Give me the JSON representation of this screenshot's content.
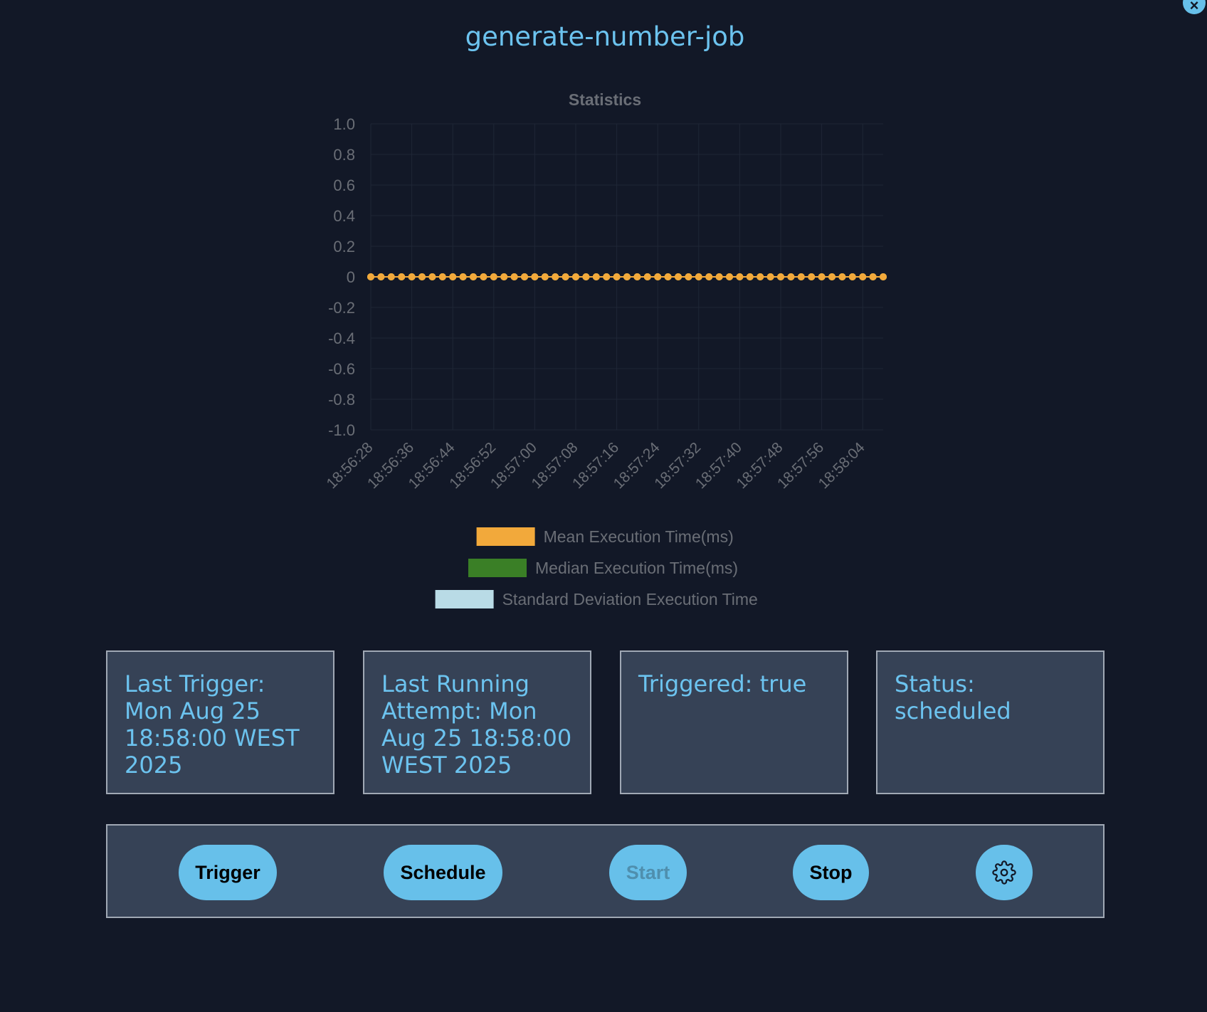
{
  "header": {
    "title": "generate-number-job",
    "close_icon": "close-icon",
    "close_glyph": "×"
  },
  "chart_data": {
    "type": "line",
    "title": "Statistics",
    "xlabel": "",
    "ylabel": "",
    "ylim": [
      -1.0,
      1.0
    ],
    "y_ticks": [
      "1.0",
      "0.8",
      "0.6",
      "0.4",
      "0.2",
      "0",
      "-0.2",
      "-0.4",
      "-0.6",
      "-0.8",
      "-1.0"
    ],
    "x_tick_labels": [
      "18:56:28",
      "18:56:36",
      "18:56:44",
      "18:56:52",
      "18:57:00",
      "18:57:08",
      "18:57:16",
      "18:57:24",
      "18:57:32",
      "18:57:40",
      "18:57:48",
      "18:57:56",
      "18:58:04"
    ],
    "x_start": "18:56:28",
    "x_end": "18:58:08",
    "x_interval_seconds": 2,
    "grid": true,
    "legend_position": "bottom",
    "series": [
      {
        "name": "Mean Execution Time(ms)",
        "color": "#f2a93b",
        "values": [
          0,
          0,
          0,
          0,
          0,
          0,
          0,
          0,
          0,
          0,
          0,
          0,
          0,
          0,
          0,
          0,
          0,
          0,
          0,
          0,
          0,
          0,
          0,
          0,
          0,
          0,
          0,
          0,
          0,
          0,
          0,
          0,
          0,
          0,
          0,
          0,
          0,
          0,
          0,
          0,
          0,
          0,
          0,
          0,
          0,
          0,
          0,
          0,
          0,
          0,
          0
        ]
      },
      {
        "name": "Median Execution Time(ms)",
        "color": "#3a7f26",
        "values": [
          0,
          0,
          0,
          0,
          0,
          0,
          0,
          0,
          0,
          0,
          0,
          0,
          0,
          0,
          0,
          0,
          0,
          0,
          0,
          0,
          0,
          0,
          0,
          0,
          0,
          0,
          0,
          0,
          0,
          0,
          0,
          0,
          0,
          0,
          0,
          0,
          0,
          0,
          0,
          0,
          0,
          0,
          0,
          0,
          0,
          0,
          0,
          0,
          0,
          0,
          0
        ]
      },
      {
        "name": "Standard Deviation Execution Time",
        "color": "#b9dbe6",
        "values": [
          0,
          0,
          0,
          0,
          0,
          0,
          0,
          0,
          0,
          0,
          0,
          0,
          0,
          0,
          0,
          0,
          0,
          0,
          0,
          0,
          0,
          0,
          0,
          0,
          0,
          0,
          0,
          0,
          0,
          0,
          0,
          0,
          0,
          0,
          0,
          0,
          0,
          0,
          0,
          0,
          0,
          0,
          0,
          0,
          0,
          0,
          0,
          0,
          0,
          0,
          0
        ]
      }
    ]
  },
  "info_cards": [
    {
      "text": "Last Trigger: Mon Aug 25 18:58:00 WEST 2025"
    },
    {
      "text": "Last Running Attempt: Mon Aug 25 18:58:00 WEST 2025"
    },
    {
      "text": "Triggered: true"
    },
    {
      "text": "Status: scheduled"
    }
  ],
  "controls": {
    "trigger_label": "Trigger",
    "schedule_label": "Schedule",
    "start_label": "Start",
    "start_disabled": true,
    "stop_label": "Stop",
    "settings_icon": "gear-icon"
  },
  "colors": {
    "background": "#121827",
    "panel": "#364256",
    "accent": "#67c0ea",
    "text_accent": "#6cc3ef"
  }
}
